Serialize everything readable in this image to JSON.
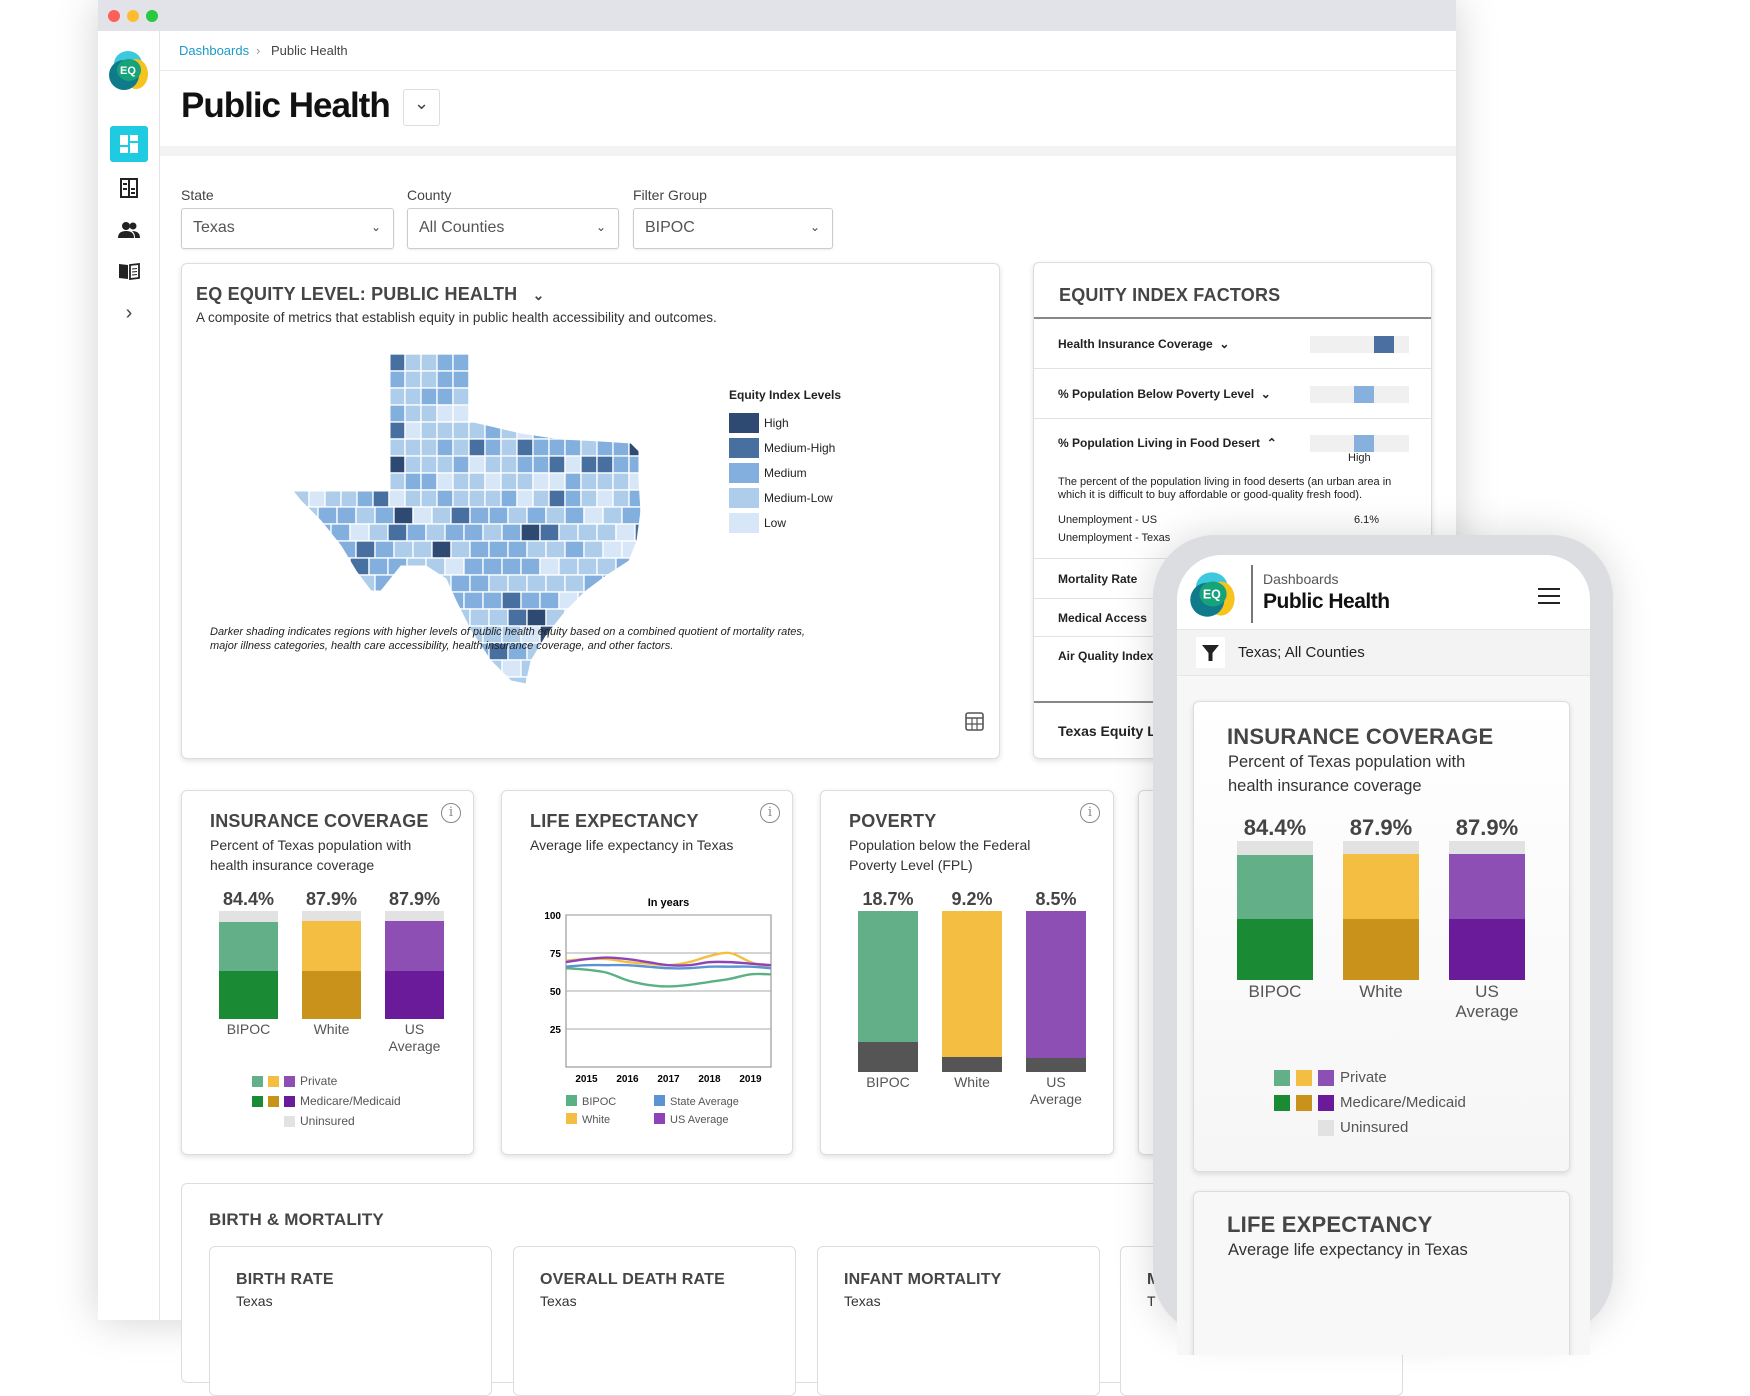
{
  "window": {
    "controls": {
      "close_color": "#ff5f57",
      "minimize_color": "#febc2e",
      "maximize_color": "#28c840"
    }
  },
  "brand": {
    "logo_text": "EQ",
    "colors": {
      "teal": "#3cc8de",
      "green": "#16a37a",
      "yellow": "#f6c21c",
      "dark": "#0e7a8a"
    }
  },
  "sidebar": {
    "items": [
      {
        "name": "dashboards",
        "icon": "dashboard-grid-icon",
        "active": true
      },
      {
        "name": "reports",
        "icon": "building-icon"
      },
      {
        "name": "users",
        "icon": "users-icon"
      },
      {
        "name": "library",
        "icon": "book-icon"
      },
      {
        "name": "expand",
        "icon": "chevron-right-icon",
        "glyph": "›"
      }
    ],
    "accent": "#1ecbe1"
  },
  "breadcrumb": {
    "root": "Dashboards",
    "separator": "›",
    "current": "Public Health"
  },
  "header": {
    "title": "Public Health",
    "dropdown_glyph": "⌄"
  },
  "filters": [
    {
      "label": "State",
      "value": "Texas"
    },
    {
      "label": "County",
      "value": "All Counties"
    },
    {
      "label": "Filter Group",
      "value": "BIPOC"
    }
  ],
  "map_card": {
    "title": "EQ EQUITY LEVEL: PUBLIC HEALTH",
    "subtitle": "A composite of metrics that establish equity in public health accessibility and outcomes.",
    "legend_title": "Equity Index Levels",
    "levels": [
      {
        "label": "High",
        "color": "#2e4a73"
      },
      {
        "label": "Medium-High",
        "color": "#476f9f"
      },
      {
        "label": "Medium",
        "color": "#82afdd"
      },
      {
        "label": "Medium-Low",
        "color": "#adcdea"
      },
      {
        "label": "Low",
        "color": "#d8e7f7"
      }
    ],
    "caption_line1": "Darker shading indicates regions with higher levels of public health equity based on a combined quotient of mortality rates,",
    "caption_line2": "major illness categories, health care accessibility, health insurance coverage, and other factors.",
    "table_icon": "table-icon"
  },
  "equity_factors": {
    "title": "EQUITY INDEX FACTORS",
    "factors": [
      {
        "label": "Health Insurance Coverage",
        "chevron": "⌄",
        "level": 0.75,
        "color": "#4a6fa0"
      },
      {
        "label": "% Population Below Poverty Level",
        "chevron": "⌄",
        "level": 0.55,
        "color": "#87b0de"
      },
      {
        "label": "% Population Living in Food Desert",
        "chevron": "⌃",
        "level": 0.55,
        "color": "#87b0de",
        "level_label": "High",
        "description": "The percent of the population living in food deserts (an urban area in which it is difficult to buy affordable or good-quality fresh food).",
        "stats": [
          {
            "label": "Unemployment - US",
            "value": "6.1%"
          },
          {
            "label": "Unemployment - Texas",
            "value": ""
          }
        ]
      },
      {
        "label": "Mortality Rate"
      },
      {
        "label": "Medical Access"
      },
      {
        "label": "Air Quality Index"
      }
    ],
    "footer": "Texas Equity L"
  },
  "insurance": {
    "title": "INSURANCE COVERAGE",
    "subtitle_line1": "Percent of Texas population with",
    "subtitle_line2": "health insurance coverage",
    "info_glyph": "i",
    "bars": [
      {
        "label": "BIPOC",
        "label2": "",
        "value": "84.4%",
        "private": 46,
        "medicare": 44,
        "uninsured": 10,
        "c_private": "#63b088",
        "c_medicare": "#1b8a35"
      },
      {
        "label": "White",
        "label2": "",
        "value": "87.9%",
        "private": 47,
        "medicare": 44,
        "uninsured": 9,
        "c_private": "#f4be42",
        "c_medicare": "#c9921a"
      },
      {
        "label": "US",
        "label2": "Average",
        "value": "87.9%",
        "private": 47,
        "medicare": 44,
        "uninsured": 9,
        "c_private": "#8e4fb5",
        "c_medicare": "#6a1b9a"
      }
    ],
    "legend": {
      "private": "Private",
      "medicare": "Medicare/Medicaid",
      "uninsured": "Uninsured",
      "uninsured_color": "#e2e2e2"
    }
  },
  "life_expectancy": {
    "title": "LIFE EXPECTANCY",
    "subtitle": "Average life expectancy in Texas",
    "info_glyph": "i"
  },
  "poverty": {
    "title": "POVERTY",
    "subtitle_line1": "Population below the Federal",
    "subtitle_line2": "Poverty Level (FPL)",
    "info_glyph": "i",
    "bars": [
      {
        "label": "BIPOC",
        "label2": "",
        "value": "18.7%",
        "pct": 18.7,
        "color": "#63b088"
      },
      {
        "label": "White",
        "label2": "",
        "value": "9.2%",
        "pct": 9.2,
        "color": "#f4be42"
      },
      {
        "label": "US",
        "label2": "Average",
        "value": "8.5%",
        "pct": 8.5,
        "color": "#8e4fb5"
      }
    ],
    "below_color": "#555555"
  },
  "birth_mortality": {
    "title": "BIRTH & MORTALITY",
    "cards": [
      {
        "title": "BIRTH RATE",
        "subtitle": "Texas"
      },
      {
        "title": "OVERALL DEATH RATE",
        "subtitle": "Texas"
      },
      {
        "title": "INFANT MORTALITY",
        "subtitle": "Texas"
      },
      {
        "title": "M",
        "subtitle": "T"
      }
    ]
  },
  "mobile": {
    "breadcrumb": "Dashboards",
    "title": "Public Health",
    "menu_icon": "hamburger-menu-icon",
    "filter_summary": "Texas; All Counties",
    "second_card_title": "LIFE EXPECTANCY",
    "second_card_subtitle": "Average life expectancy in Texas"
  },
  "chart_data": {
    "type": "line",
    "title": "In years",
    "x": [
      2014.5,
      2015,
      2015.5,
      2016,
      2016.5,
      2017,
      2017.5,
      2018,
      2018.5,
      2019,
      2019.5
    ],
    "x_ticks": [
      2015,
      2016,
      2017,
      2018,
      2019
    ],
    "y_ticks": [
      25,
      50,
      75,
      100
    ],
    "xlim": [
      2014.5,
      2019.5
    ],
    "ylim": [
      0,
      100
    ],
    "grid": true,
    "legend_position": "bottom",
    "series": [
      {
        "name": "BIPOC",
        "color": "#5bb183",
        "values": [
          65,
          64,
          62,
          57,
          54,
          53,
          54,
          56,
          58,
          61,
          61
        ]
      },
      {
        "name": "White",
        "color": "#f4be42",
        "values": [
          70,
          71,
          71,
          69,
          68,
          67,
          69,
          73,
          75,
          69,
          65
        ]
      },
      {
        "name": "State Average",
        "color": "#5b93d3",
        "values": [
          66,
          67,
          67,
          67,
          66,
          65,
          65,
          66,
          66,
          66,
          65
        ]
      },
      {
        "name": "US Average",
        "color": "#8e44b8",
        "values": [
          69,
          71,
          72,
          71,
          69,
          67,
          67,
          69,
          69,
          68,
          67
        ]
      }
    ]
  }
}
